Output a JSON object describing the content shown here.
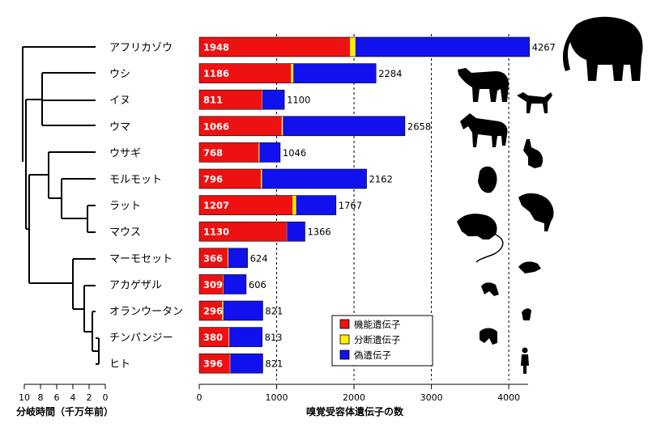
{
  "chart_data": {
    "type": "bar",
    "stacked": true,
    "orientation": "horizontal",
    "categories": [
      "アフリカゾウ",
      "ウシ",
      "イヌ",
      "ウマ",
      "ウサギ",
      "モルモット",
      "ラット",
      "マウス",
      "マーモセット",
      "アカゲザル",
      "オランウータン",
      "チンパンジー",
      "ヒト"
    ],
    "totals": [
      4267,
      2284,
      1100,
      2658,
      1046,
      2162,
      1767,
      1366,
      624,
      606,
      821,
      813,
      821
    ],
    "functional": [
      1948,
      1186,
      811,
      1066,
      768,
      796,
      1207,
      1130,
      366,
      309,
      296,
      380,
      396
    ],
    "series": [
      {
        "name": "機能遺伝子",
        "color": "#ee1111",
        "values": [
          1948,
          1186,
          811,
          1066,
          768,
          796,
          1207,
          1130,
          366,
          309,
          296,
          380,
          396
        ]
      },
      {
        "name": "分断遺伝子",
        "color": "#ffee00",
        "values": [
          70,
          30,
          5,
          15,
          10,
          15,
          45,
          3,
          10,
          5,
          15,
          8,
          5
        ]
      },
      {
        "name": "偽遺伝子",
        "color": "#1111ee",
        "values": [
          2249,
          1068,
          284,
          1577,
          268,
          1351,
          515,
          233,
          248,
          292,
          510,
          425,
          420
        ]
      }
    ],
    "xlabel": "嗅覚受容体遺伝子の数",
    "xlim": [
      0,
      4250
    ],
    "xticks": [
      0,
      1000,
      2000,
      3000,
      4000
    ],
    "dashed_gridlines": [
      1000,
      2000,
      3000,
      4000
    ],
    "legend_position": "bottom-center",
    "tree": {
      "xlabel": "分岐時間（千万年前）",
      "xticks": [
        10,
        8,
        6,
        4,
        2,
        0
      ]
    }
  },
  "silhouettes": [
    "elephant-icon",
    "cow-icon",
    "dog-icon",
    "horse-icon",
    "rabbit-icon",
    "guinea-pig-icon",
    "rat-icon",
    "mouse-icon",
    "marmoset-icon",
    "macaque-icon",
    "orangutan-icon",
    "chimpanzee-icon",
    "human-icon"
  ]
}
